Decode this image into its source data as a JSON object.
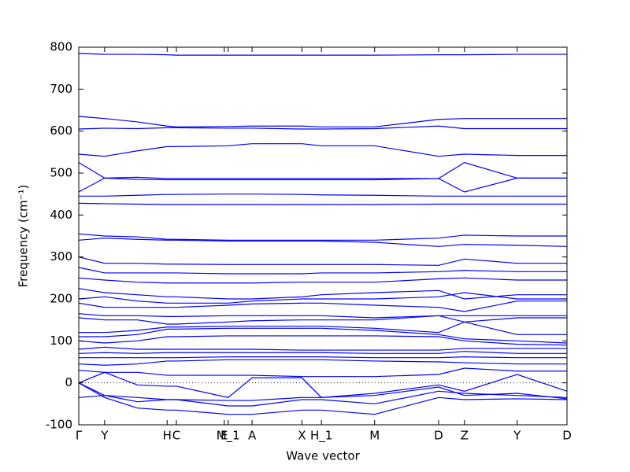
{
  "chart_data": {
    "type": "line",
    "xlabel": "Wave vector",
    "ylabel": "Frequency (cm⁻¹)",
    "color": "#0000ff",
    "zero_line": true,
    "xlim": [
      0,
      1
    ],
    "ylim": [
      -100,
      800
    ],
    "yticks": [
      -100,
      0,
      100,
      200,
      300,
      400,
      500,
      600,
      700,
      800
    ],
    "xticks": [
      {
        "value": 0,
        "label": "Γ"
      },
      {
        "value": 0.053,
        "label": "Y"
      },
      {
        "value": 0.181,
        "label": "H"
      },
      {
        "value": 0.2,
        "label": "C"
      },
      {
        "value": 0.298,
        "label": "E"
      },
      {
        "value": 0.306,
        "label": "M_1"
      },
      {
        "value": 0.355,
        "label": "A"
      },
      {
        "value": 0.457,
        "label": "X"
      },
      {
        "value": 0.497,
        "label": "H_1"
      },
      {
        "value": 0.606,
        "label": "M"
      },
      {
        "value": 0.737,
        "label": "D"
      },
      {
        "value": 0.79,
        "label": "Z"
      },
      {
        "value": 0.898,
        "label": "Y"
      },
      {
        "value": 1,
        "label": "D"
      }
    ],
    "x": [
      0,
      0.053,
      0.12,
      0.181,
      0.2,
      0.306,
      0.355,
      0.457,
      0.497,
      0.606,
      0.737,
      0.79,
      0.898,
      1
    ],
    "series": [
      {
        "values": [
          785,
          783,
          783,
          782,
          781,
          781,
          781,
          781,
          781,
          781,
          782,
          782,
          783,
          783
        ]
      },
      {
        "values": [
          635,
          630,
          622,
          612,
          610,
          611,
          612,
          612,
          610,
          610,
          628,
          630,
          630,
          630
        ]
      },
      {
        "values": [
          605,
          607,
          606,
          608,
          608,
          607,
          607,
          605,
          605,
          606,
          612,
          606,
          606,
          606
        ]
      },
      {
        "values": [
          545,
          540,
          553,
          563,
          563,
          565,
          570,
          570,
          565,
          565,
          540,
          545,
          542,
          542
        ]
      },
      {
        "values": [
          525,
          488,
          490,
          487,
          487,
          487,
          487,
          487,
          487,
          487,
          487,
          525,
          488,
          488
        ]
      },
      {
        "values": [
          455,
          488,
          485,
          484,
          484,
          484,
          484,
          484,
          484,
          484,
          487,
          455,
          488,
          488
        ]
      },
      {
        "values": [
          445,
          445,
          447,
          449,
          449,
          450,
          450,
          449,
          448,
          447,
          445,
          445,
          445,
          445
        ]
      },
      {
        "values": [
          428,
          427,
          426,
          425,
          425,
          425,
          425,
          425,
          425,
          425,
          426,
          426,
          426,
          426
        ]
      },
      {
        "values": [
          355,
          350,
          348,
          342,
          342,
          340,
          340,
          340,
          340,
          340,
          345,
          352,
          350,
          350
        ]
      },
      {
        "values": [
          340,
          345,
          342,
          340,
          340,
          338,
          338,
          338,
          338,
          335,
          325,
          330,
          328,
          325
        ]
      },
      {
        "values": [
          300,
          285,
          285,
          283,
          283,
          282,
          282,
          282,
          282,
          282,
          280,
          295,
          285,
          285
        ]
      },
      {
        "values": [
          275,
          262,
          262,
          262,
          262,
          260,
          260,
          260,
          262,
          262,
          265,
          268,
          265,
          265
        ]
      },
      {
        "values": [
          250,
          245,
          240,
          238,
          238,
          238,
          238,
          240,
          240,
          240,
          248,
          250,
          245,
          245
        ]
      },
      {
        "values": [
          225,
          215,
          210,
          205,
          205,
          200,
          200,
          205,
          210,
          215,
          220,
          200,
          210,
          210
        ]
      },
      {
        "values": [
          200,
          205,
          195,
          190,
          190,
          190,
          195,
          200,
          200,
          200,
          205,
          215,
          200,
          200
        ]
      },
      {
        "values": [
          190,
          180,
          180,
          180,
          180,
          185,
          188,
          190,
          190,
          185,
          180,
          170,
          195,
          195
        ]
      },
      {
        "values": [
          165,
          160,
          160,
          158,
          158,
          160,
          160,
          160,
          160,
          155,
          160,
          160,
          160,
          160
        ]
      },
      {
        "values": [
          155,
          150,
          150,
          140,
          140,
          145,
          148,
          150,
          150,
          150,
          160,
          145,
          155,
          155
        ]
      },
      {
        "values": [
          120,
          120,
          125,
          133,
          133,
          135,
          135,
          135,
          135,
          130,
          120,
          145,
          115,
          115
        ]
      },
      {
        "values": [
          110,
          110,
          115,
          128,
          128,
          130,
          130,
          130,
          130,
          125,
          115,
          105,
          100,
          95
        ]
      },
      {
        "values": [
          100,
          95,
          100,
          110,
          110,
          112,
          112,
          112,
          112,
          112,
          110,
          100,
          92,
          90
        ]
      },
      {
        "values": [
          80,
          85,
          80,
          80,
          80,
          80,
          80,
          78,
          78,
          78,
          78,
          82,
          82,
          82
        ]
      },
      {
        "values": [
          70,
          72,
          70,
          72,
          72,
          72,
          72,
          72,
          72,
          70,
          70,
          75,
          70,
          70
        ]
      },
      {
        "values": [
          60,
          60,
          60,
          60,
          60,
          62,
          62,
          62,
          62,
          60,
          60,
          62,
          60,
          60
        ]
      },
      {
        "values": [
          45,
          42,
          45,
          52,
          52,
          55,
          55,
          55,
          55,
          52,
          50,
          48,
          45,
          45
        ]
      },
      {
        "values": [
          30,
          25,
          25,
          18,
          18,
          18,
          18,
          15,
          15,
          15,
          20,
          35,
          28,
          28
        ]
      },
      {
        "values": [
          0,
          25,
          -5,
          -8,
          -8,
          -35,
          12,
          12,
          -35,
          -25,
          -5,
          -20,
          20,
          -20
        ]
      },
      {
        "values": [
          0,
          -30,
          -45,
          -40,
          -40,
          -55,
          -55,
          -40,
          -40,
          -50,
          -20,
          -25,
          -30,
          -35
        ]
      },
      {
        "values": [
          0,
          -35,
          -60,
          -65,
          -65,
          -75,
          -75,
          -65,
          -65,
          -75,
          -35,
          -40,
          -38,
          -40
        ]
      },
      {
        "values": [
          -35,
          -30,
          -35,
          -40,
          -40,
          -42,
          -42,
          -35,
          -35,
          -30,
          -10,
          -30,
          -25,
          -38
        ]
      }
    ]
  }
}
